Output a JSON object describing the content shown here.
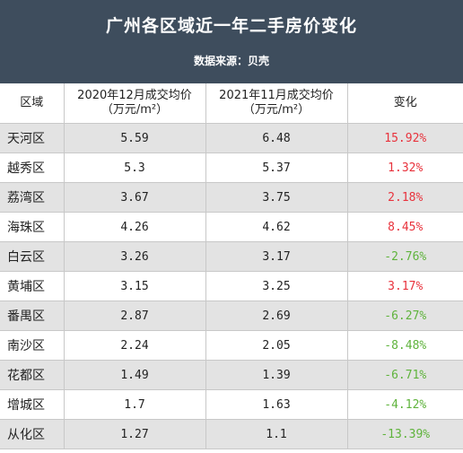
{
  "header": {
    "title": "广州各区域近一年二手房价变化",
    "source": "数据来源：贝壳"
  },
  "columns": {
    "district": "区域",
    "price_2020": "2020年12月成交均价\n（万元/m²）",
    "price_2021": "2021年11月成交均价\n（万元/m²）",
    "change": "变化"
  },
  "rows": [
    {
      "district": "天河区",
      "price_2020": "5.59",
      "price_2021": "6.48",
      "change": "15.92%",
      "direction": "up"
    },
    {
      "district": "越秀区",
      "price_2020": "5.3",
      "price_2021": "5.37",
      "change": "1.32%",
      "direction": "up"
    },
    {
      "district": "荔湾区",
      "price_2020": "3.67",
      "price_2021": "3.75",
      "change": "2.18%",
      "direction": "up"
    },
    {
      "district": "海珠区",
      "price_2020": "4.26",
      "price_2021": "4.62",
      "change": "8.45%",
      "direction": "up"
    },
    {
      "district": "白云区",
      "price_2020": "3.26",
      "price_2021": "3.17",
      "change": "-2.76%",
      "direction": "down"
    },
    {
      "district": "黄埔区",
      "price_2020": "3.15",
      "price_2021": "3.25",
      "change": "3.17%",
      "direction": "up"
    },
    {
      "district": "番禺区",
      "price_2020": "2.87",
      "price_2021": "2.69",
      "change": "-6.27%",
      "direction": "down"
    },
    {
      "district": "南沙区",
      "price_2020": "2.24",
      "price_2021": "2.05",
      "change": "-8.48%",
      "direction": "down"
    },
    {
      "district": "花都区",
      "price_2020": "1.49",
      "price_2021": "1.39",
      "change": "-6.71%",
      "direction": "down"
    },
    {
      "district": "增城区",
      "price_2020": "1.7",
      "price_2021": "1.63",
      "change": "-4.12%",
      "direction": "down"
    },
    {
      "district": "从化区",
      "price_2020": "1.27",
      "price_2021": "1.1",
      "change": "-13.39%",
      "direction": "down"
    }
  ],
  "colors": {
    "header_bg": "#3e4d5d",
    "row_shade": "#e3e3e3",
    "increase": "#e8323c",
    "decrease": "#5fb33c"
  }
}
